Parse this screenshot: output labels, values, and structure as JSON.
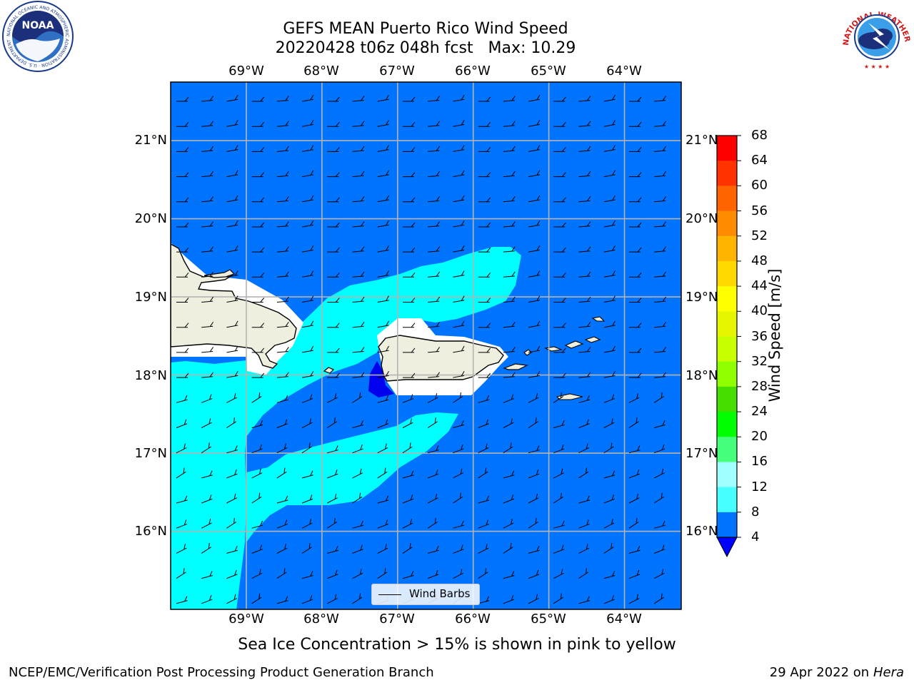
{
  "header": {
    "title_line1": "GEFS MEAN Puerto Rico Wind Speed",
    "title_line2": "20220428 t06z 048h fcst   Max: 10.29"
  },
  "logos": {
    "left": {
      "name": "NOAA",
      "ring_text": "NATIONAL OCEANIC AND ATMOSPHERIC ADMINISTRATION · U.S. DEPARTMENT OF COMMERCE"
    },
    "right": {
      "name": "NATIONAL WEATHER SERVICE"
    }
  },
  "map": {
    "longitude_labels": [
      "69°W",
      "68°W",
      "67°W",
      "66°W",
      "65°W",
      "64°W"
    ],
    "latitude_labels": [
      "21°N",
      "20°N",
      "19°N",
      "18°N",
      "17°N",
      "16°N"
    ],
    "lon_range": [
      -70.0,
      -63.25
    ],
    "lat_range": [
      15.0,
      21.75
    ],
    "background_color": "#0073ff",
    "land_color": "#efefdf",
    "legend_label": "Wind Barbs"
  },
  "colorbar": {
    "title": "Wind Speed [m/s]",
    "ticks": [
      "68",
      "64",
      "60",
      "56",
      "52",
      "48",
      "44",
      "40",
      "36",
      "32",
      "28",
      "24",
      "20",
      "16",
      "12",
      "8",
      "4"
    ],
    "levels": [
      4,
      8,
      12,
      16,
      20,
      24,
      28,
      32,
      36,
      40,
      44,
      48,
      52,
      56,
      60,
      64,
      68
    ],
    "colors": [
      "#0073ff",
      "#00ffff",
      "#46ffff",
      "#a0ffff",
      "#46ff7a",
      "#00ff00",
      "#46df00",
      "#90ff00",
      "#c8ff00",
      "#e6f500",
      "#ffff00",
      "#ffd800",
      "#ffb400",
      "#ff8c00",
      "#ff6400",
      "#ff3200",
      "#ff0000"
    ],
    "under_color": "#0000ff"
  },
  "caption": "Sea Ice Concentration > 15% is shown in pink to yellow",
  "footer": {
    "left": "NCEP/EMC/Verification Post Processing Product Generation Branch",
    "right_date": "29 Apr 2022 on ",
    "right_host": "Hera"
  }
}
